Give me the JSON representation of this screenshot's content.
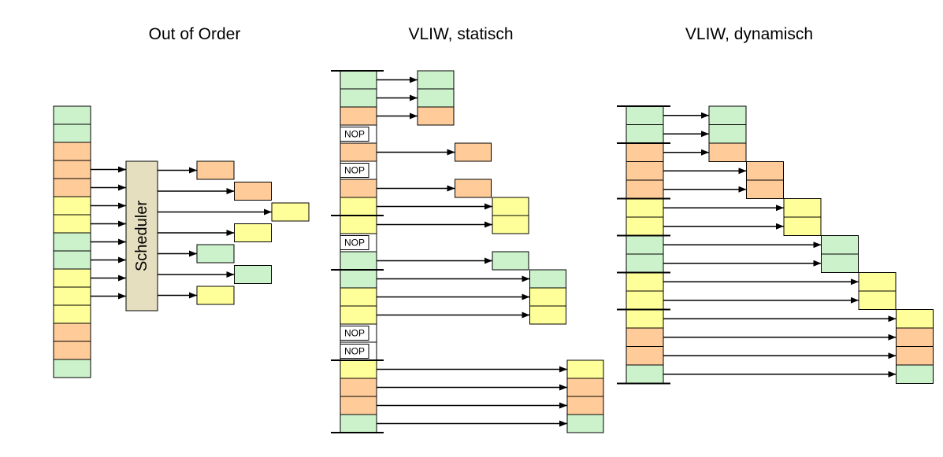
{
  "colors": {
    "green": "#ccf2cc",
    "orange": "#ffcc99",
    "yellow": "#ffff99",
    "nop": "#ffffff",
    "scheduler": "#e5dfc0",
    "line": "#000000"
  },
  "panels": [
    {
      "key": "out-of-order",
      "title": "Out of Order",
      "scheduler_label": "Scheduler",
      "stack": [
        "green",
        "green",
        "orange",
        "orange",
        "orange",
        "yellow",
        "yellow",
        "green",
        "green",
        "yellow",
        "yellow",
        "yellow",
        "orange",
        "orange",
        "green"
      ],
      "scheduler_input_rows": [
        3,
        4,
        5,
        6,
        7,
        8,
        9,
        10
      ],
      "issue": [
        {
          "slot": 0,
          "col": 0,
          "color": "orange"
        },
        {
          "slot": 1,
          "col": 1,
          "color": "orange"
        },
        {
          "slot": 2,
          "col": 2,
          "color": "yellow"
        },
        {
          "slot": 3,
          "col": 1,
          "color": "yellow"
        },
        {
          "slot": 4,
          "col": 0,
          "color": "green"
        },
        {
          "slot": 5,
          "col": 1,
          "color": "green"
        },
        {
          "slot": 6,
          "col": 0,
          "color": "yellow"
        }
      ]
    },
    {
      "key": "vliw-static",
      "title": "VLIW, statisch",
      "nop_label": "NOP",
      "rows": [
        {
          "type": "instr",
          "color": "green"
        },
        {
          "type": "instr",
          "color": "green"
        },
        {
          "type": "instr",
          "color": "orange"
        },
        {
          "type": "nop"
        },
        {
          "type": "instr",
          "color": "orange"
        },
        {
          "type": "nop"
        },
        {
          "type": "instr",
          "color": "orange"
        },
        {
          "type": "instr",
          "color": "yellow"
        },
        {
          "type": "instr",
          "color": "yellow"
        },
        {
          "type": "nop"
        },
        {
          "type": "instr",
          "color": "green"
        },
        {
          "type": "instr",
          "color": "green"
        },
        {
          "type": "instr",
          "color": "yellow"
        },
        {
          "type": "instr",
          "color": "yellow"
        },
        {
          "type": "nop"
        },
        {
          "type": "nop"
        },
        {
          "type": "instr",
          "color": "yellow"
        },
        {
          "type": "instr",
          "color": "orange"
        },
        {
          "type": "instr",
          "color": "orange"
        },
        {
          "type": "instr",
          "color": "green"
        }
      ],
      "separators": [
        0,
        8,
        11,
        16,
        20
      ],
      "issue": [
        {
          "row": 0,
          "col": 0,
          "color": "green"
        },
        {
          "row": 1,
          "col": 0,
          "color": "green"
        },
        {
          "row": 2,
          "col": 0,
          "color": "orange"
        },
        {
          "row": 4,
          "col": 1,
          "color": "orange"
        },
        {
          "row": 6,
          "col": 1,
          "color": "orange"
        },
        {
          "row": 7,
          "col": 2,
          "color": "yellow"
        },
        {
          "row": 8,
          "col": 2,
          "color": "yellow"
        },
        {
          "row": 10,
          "col": 2,
          "color": "green"
        },
        {
          "row": 11,
          "col": 3,
          "color": "green"
        },
        {
          "row": 12,
          "col": 3,
          "color": "yellow"
        },
        {
          "row": 13,
          "col": 3,
          "color": "yellow"
        },
        {
          "row": 16,
          "col": 4,
          "color": "yellow"
        },
        {
          "row": 17,
          "col": 4,
          "color": "orange"
        },
        {
          "row": 18,
          "col": 4,
          "color": "orange"
        },
        {
          "row": 19,
          "col": 4,
          "color": "green"
        }
      ]
    },
    {
      "key": "vliw-dynamic",
      "title": "VLIW, dynamisch",
      "rows": [
        {
          "type": "instr",
          "color": "green"
        },
        {
          "type": "instr",
          "color": "green"
        },
        {
          "type": "instr",
          "color": "orange"
        },
        {
          "type": "instr",
          "color": "orange"
        },
        {
          "type": "instr",
          "color": "orange"
        },
        {
          "type": "instr",
          "color": "yellow"
        },
        {
          "type": "instr",
          "color": "yellow"
        },
        {
          "type": "instr",
          "color": "green"
        },
        {
          "type": "instr",
          "color": "green"
        },
        {
          "type": "instr",
          "color": "yellow"
        },
        {
          "type": "instr",
          "color": "yellow"
        },
        {
          "type": "instr",
          "color": "yellow"
        },
        {
          "type": "instr",
          "color": "orange"
        },
        {
          "type": "instr",
          "color": "orange"
        },
        {
          "type": "instr",
          "color": "green"
        }
      ],
      "separators": [
        0,
        2,
        5,
        7,
        9,
        11,
        15
      ],
      "issue": [
        {
          "row": 0,
          "col": 0,
          "color": "green"
        },
        {
          "row": 1,
          "col": 0,
          "color": "green"
        },
        {
          "row": 2,
          "col": 0,
          "color": "orange"
        },
        {
          "row": 3,
          "col": 1,
          "color": "orange"
        },
        {
          "row": 4,
          "col": 1,
          "color": "orange"
        },
        {
          "row": 5,
          "col": 2,
          "color": "yellow"
        },
        {
          "row": 6,
          "col": 2,
          "color": "yellow"
        },
        {
          "row": 7,
          "col": 3,
          "color": "green"
        },
        {
          "row": 8,
          "col": 3,
          "color": "green"
        },
        {
          "row": 9,
          "col": 4,
          "color": "yellow"
        },
        {
          "row": 10,
          "col": 4,
          "color": "yellow"
        },
        {
          "row": 11,
          "col": 5,
          "color": "yellow"
        },
        {
          "row": 12,
          "col": 5,
          "color": "orange"
        },
        {
          "row": 13,
          "col": 5,
          "color": "orange"
        },
        {
          "row": 14,
          "col": 5,
          "color": "green"
        }
      ]
    }
  ]
}
